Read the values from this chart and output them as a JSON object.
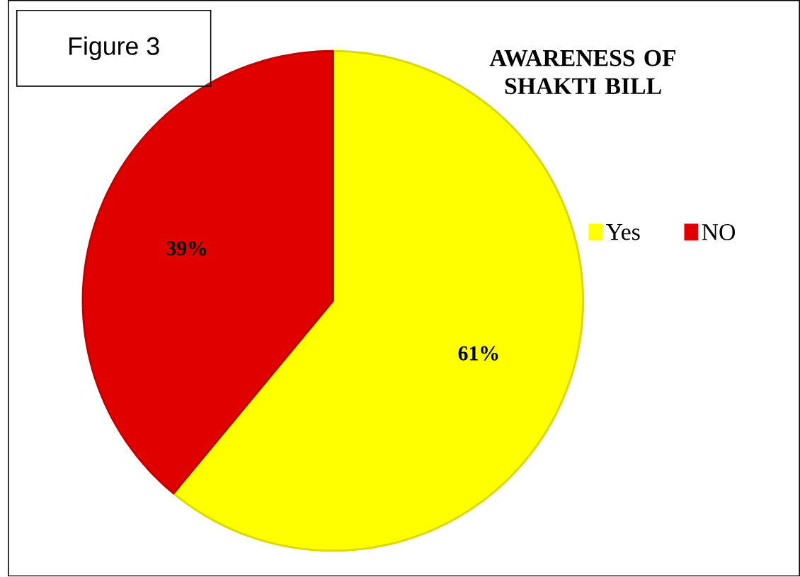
{
  "chart_data": {
    "type": "pie",
    "title": "AWARENESS OF SHAKTI BILL",
    "categories": [
      "Yes",
      "NO"
    ],
    "values": [
      61,
      39
    ],
    "colors": [
      "#ffff00",
      "#e00000"
    ],
    "value_labels": [
      "61%",
      "39%"
    ],
    "legend": "right",
    "annotations": [
      "Figure 3"
    ]
  }
}
